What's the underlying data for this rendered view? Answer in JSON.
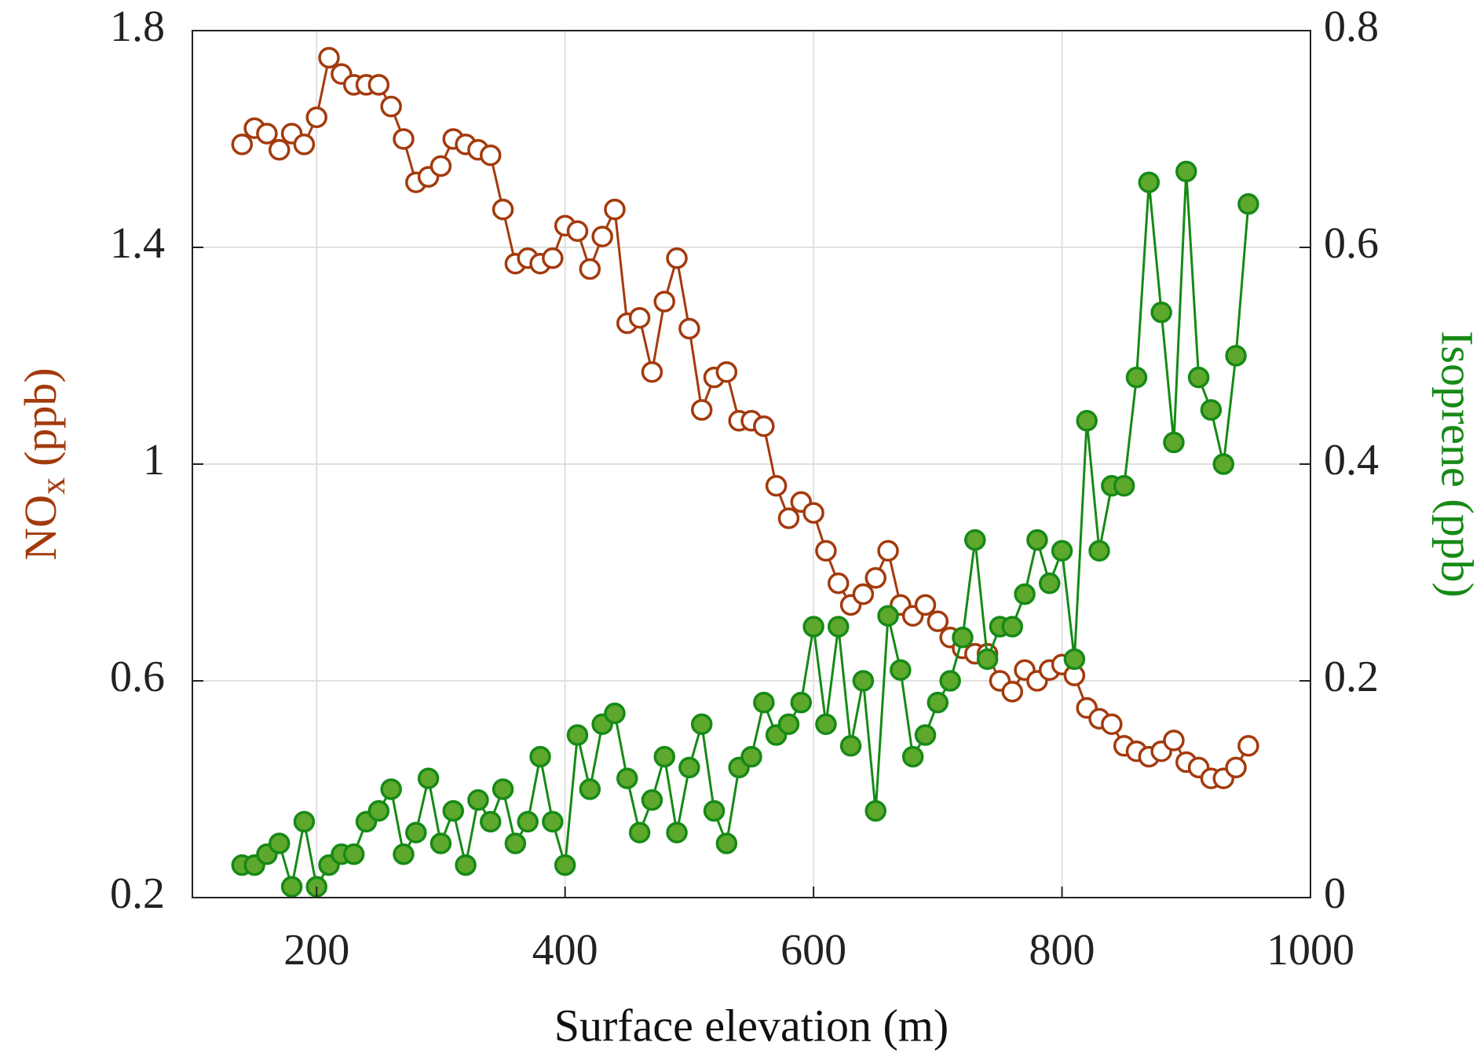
{
  "chart_data": {
    "type": "line",
    "xlabel": "Surface elevation (m)",
    "ylabel": [
      "NO",
      "x",
      "(ppb)"
    ],
    "y2label": "Isoprene (ppb)",
    "xlim": [
      100,
      1000
    ],
    "xticks": [
      200,
      400,
      600,
      800,
      1000
    ],
    "ylim": [
      0.2,
      1.8
    ],
    "yticks": [
      0.2,
      0.6,
      1,
      1.4,
      1.8
    ],
    "y2lim": [
      0,
      0.8
    ],
    "y2ticks": [
      0,
      0.2,
      0.4,
      0.6,
      0.8
    ],
    "grid": true,
    "x": [
      140,
      150,
      160,
      170,
      180,
      190,
      200,
      210,
      220,
      230,
      240,
      250,
      260,
      270,
      280,
      290,
      300,
      310,
      320,
      330,
      340,
      350,
      360,
      370,
      380,
      390,
      400,
      410,
      420,
      430,
      440,
      450,
      460,
      470,
      480,
      490,
      500,
      510,
      520,
      530,
      540,
      550,
      560,
      570,
      580,
      590,
      600,
      610,
      620,
      630,
      640,
      650,
      660,
      670,
      680,
      690,
      700,
      710,
      720,
      730,
      740,
      750,
      760,
      770,
      780,
      790,
      800,
      810,
      820,
      830,
      840,
      850,
      860,
      870,
      880,
      890,
      900,
      910,
      920,
      930,
      940,
      950
    ],
    "series": [
      {
        "name": "NOx",
        "color": "#a33a0c",
        "marker_fill": "#ffffff",
        "values": [
          1.59,
          1.62,
          1.61,
          1.58,
          1.61,
          1.59,
          1.64,
          1.75,
          1.72,
          1.7,
          1.7,
          1.7,
          1.66,
          1.6,
          1.52,
          1.53,
          1.55,
          1.6,
          1.59,
          1.58,
          1.57,
          1.47,
          1.37,
          1.38,
          1.37,
          1.38,
          1.44,
          1.43,
          1.36,
          1.42,
          1.47,
          1.26,
          1.27,
          1.17,
          1.3,
          1.38,
          1.25,
          1.1,
          1.16,
          1.17,
          1.08,
          1.08,
          1.07,
          0.96,
          0.9,
          0.93,
          0.91,
          0.84,
          0.78,
          0.74,
          0.76,
          0.79,
          0.84,
          0.74,
          0.72,
          0.74,
          0.71,
          0.68,
          0.66,
          0.65,
          0.65,
          0.6,
          0.58,
          0.62,
          0.6,
          0.62,
          0.63,
          0.61,
          0.55,
          0.53,
          0.52,
          0.48,
          0.47,
          0.46,
          0.47,
          0.49,
          0.45,
          0.44,
          0.42,
          0.42,
          0.44,
          0.48
        ]
      },
      {
        "name": "Isoprene",
        "color": "#168a16",
        "marker_fill": "#5ea82e",
        "axis": "y2",
        "values": [
          0.03,
          0.03,
          0.04,
          0.05,
          0.01,
          0.07,
          0.01,
          0.03,
          0.04,
          0.04,
          0.07,
          0.08,
          0.1,
          0.04,
          0.06,
          0.11,
          0.05,
          0.08,
          0.03,
          0.09,
          0.07,
          0.1,
          0.05,
          0.07,
          0.13,
          0.07,
          0.03,
          0.15,
          0.1,
          0.16,
          0.17,
          0.11,
          0.06,
          0.09,
          0.13,
          0.06,
          0.12,
          0.16,
          0.08,
          0.05,
          0.12,
          0.13,
          0.18,
          0.15,
          0.16,
          0.18,
          0.25,
          0.16,
          0.25,
          0.14,
          0.2,
          0.08,
          0.26,
          0.21,
          0.13,
          0.15,
          0.18,
          0.2,
          0.24,
          0.33,
          0.22,
          0.25,
          0.25,
          0.28,
          0.33,
          0.29,
          0.32,
          0.22,
          0.44,
          0.32,
          0.38,
          0.38,
          0.48,
          0.66,
          0.54,
          0.42,
          0.67,
          0.48,
          0.45,
          0.4,
          0.5,
          0.64
        ]
      }
    ]
  }
}
